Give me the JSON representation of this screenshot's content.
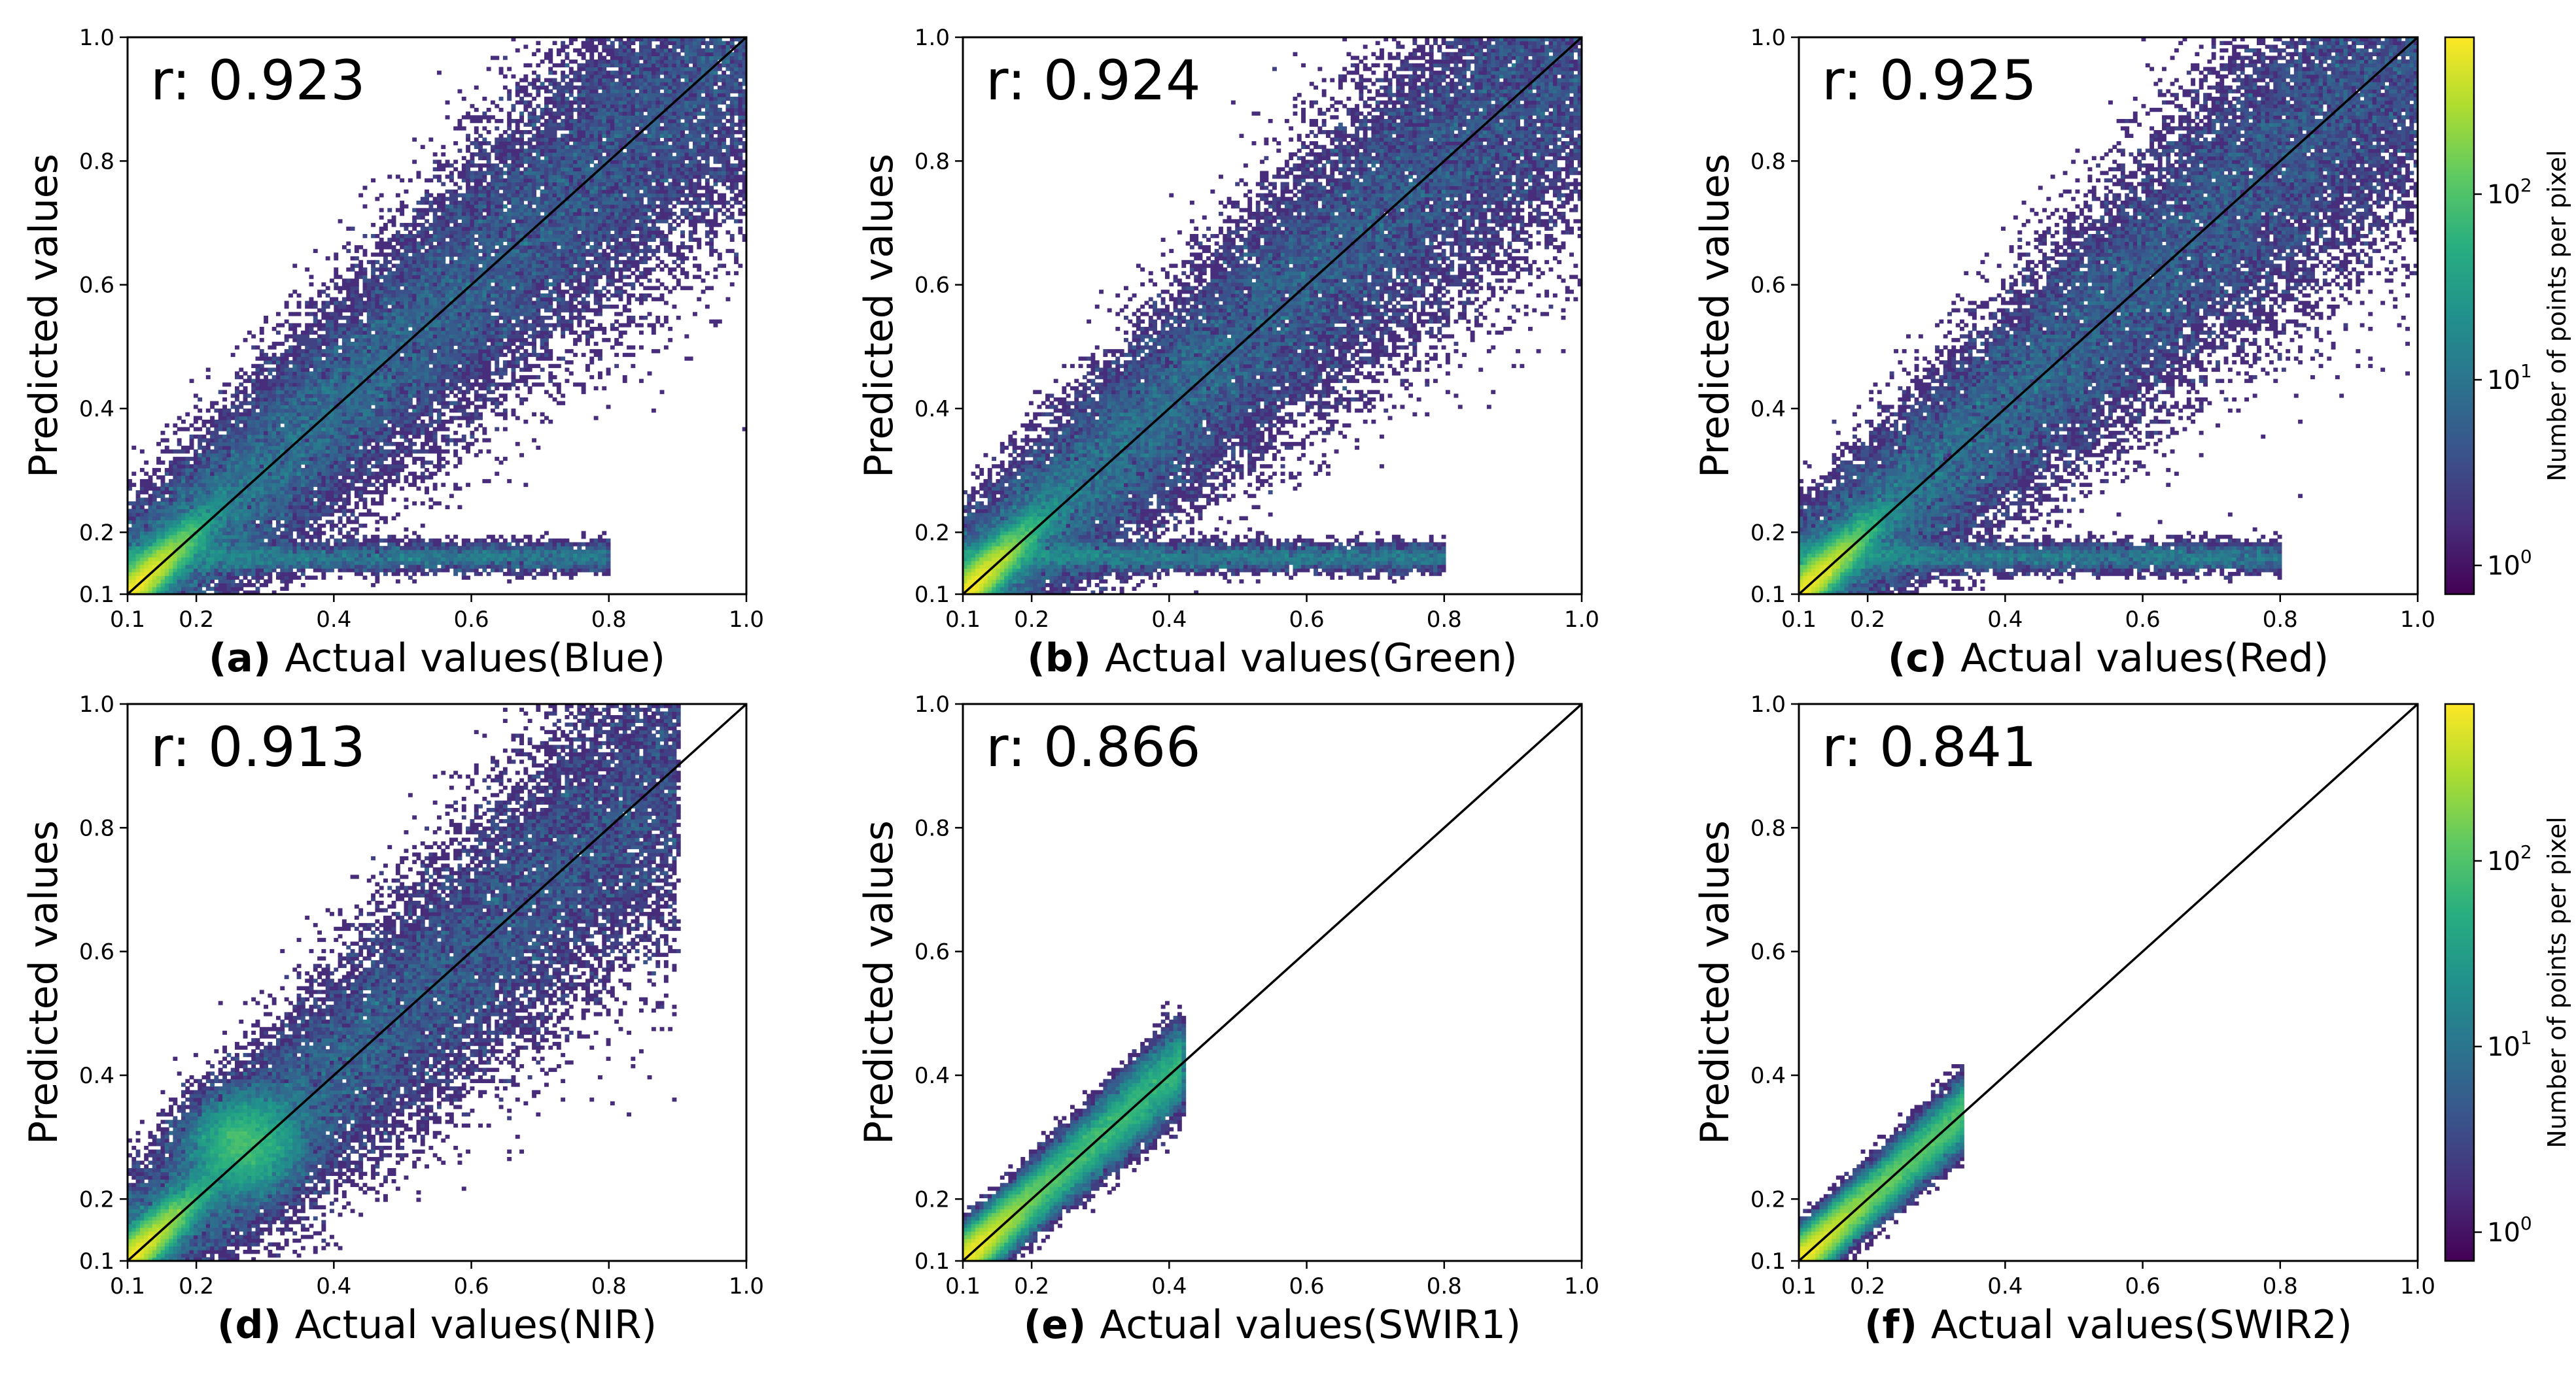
{
  "chart_data": [
    {
      "type": "heatmap",
      "panel": "(a)",
      "title": "",
      "xlabel": "Actual values(Blue)",
      "ylabel": "Predicted values",
      "r_label": "r: 0.923",
      "r": 0.923,
      "xlim": [
        0.1,
        1.0
      ],
      "ylim": [
        0.1,
        1.0
      ],
      "xticks": [
        "0.1",
        "0.2",
        "0.4",
        "0.6",
        "0.8",
        "1.0"
      ],
      "yticks": [
        "0.1",
        "0.2",
        "0.4",
        "0.6",
        "0.8",
        "1.0"
      ],
      "identity_line": true,
      "data_extent": 1.0,
      "spread": 0.1,
      "low_branch": true,
      "hotspot": [
        0.13,
        0.14
      ]
    },
    {
      "type": "heatmap",
      "panel": "(b)",
      "title": "",
      "xlabel": "Actual values(Green)",
      "ylabel": "Predicted values",
      "r_label": "r: 0.924",
      "r": 0.924,
      "xlim": [
        0.1,
        1.0
      ],
      "ylim": [
        0.1,
        1.0
      ],
      "xticks": [
        "0.1",
        "0.2",
        "0.4",
        "0.6",
        "0.8",
        "1.0"
      ],
      "yticks": [
        "0.1",
        "0.2",
        "0.4",
        "0.6",
        "0.8",
        "1.0"
      ],
      "identity_line": true,
      "data_extent": 1.0,
      "spread": 0.1,
      "low_branch": true,
      "hotspot": [
        0.13,
        0.14
      ]
    },
    {
      "type": "heatmap",
      "panel": "(c)",
      "title": "",
      "xlabel": "Actual values(Red)",
      "ylabel": "Predicted values",
      "r_label": "r: 0.925",
      "r": 0.925,
      "xlim": [
        0.1,
        1.0
      ],
      "ylim": [
        0.1,
        1.0
      ],
      "xticks": [
        "0.1",
        "0.2",
        "0.4",
        "0.6",
        "0.8",
        "1.0"
      ],
      "yticks": [
        "0.1",
        "0.2",
        "0.4",
        "0.6",
        "0.8",
        "1.0"
      ],
      "identity_line": true,
      "data_extent": 1.0,
      "spread": 0.1,
      "low_branch": true,
      "hotspot": [
        0.13,
        0.14
      ]
    },
    {
      "type": "heatmap",
      "panel": "(d)",
      "title": "",
      "xlabel": "Actual values(NIR)",
      "ylabel": "Predicted values",
      "r_label": "r: 0.913",
      "r": 0.913,
      "xlim": [
        0.1,
        1.0
      ],
      "ylim": [
        0.1,
        1.0
      ],
      "xticks": [
        "0.1",
        "0.2",
        "0.4",
        "0.6",
        "0.8",
        "1.0"
      ],
      "yticks": [
        "0.1",
        "0.2",
        "0.4",
        "0.6",
        "0.8",
        "1.0"
      ],
      "identity_line": true,
      "data_extent": 0.9,
      "spread": 0.1,
      "low_branch": false,
      "hotspot": [
        0.27,
        0.29
      ]
    },
    {
      "type": "heatmap",
      "panel": "(e)",
      "title": "",
      "xlabel": "Actual values(SWIR1)",
      "ylabel": "Predicted values",
      "r_label": "r: 0.866",
      "r": 0.866,
      "xlim": [
        0.1,
        1.0
      ],
      "ylim": [
        0.1,
        1.0
      ],
      "xticks": [
        "0.1",
        "0.2",
        "0.4",
        "0.6",
        "0.8",
        "1.0"
      ],
      "yticks": [
        "0.1",
        "0.2",
        "0.4",
        "0.6",
        "0.8",
        "1.0"
      ],
      "identity_line": true,
      "data_extent": 0.42,
      "spread": 0.035,
      "low_branch": false,
      "hotspot": [
        0.13,
        0.15
      ]
    },
    {
      "type": "heatmap",
      "panel": "(f)",
      "title": "",
      "xlabel": "Actual values(SWIR2)",
      "ylabel": "Predicted values",
      "r_label": "r: 0.841",
      "r": 0.841,
      "xlim": [
        0.1,
        1.0
      ],
      "ylim": [
        0.1,
        1.0
      ],
      "xticks": [
        "0.1",
        "0.2",
        "0.4",
        "0.6",
        "0.8",
        "1.0"
      ],
      "yticks": [
        "0.1",
        "0.2",
        "0.4",
        "0.6",
        "0.8",
        "1.0"
      ],
      "identity_line": true,
      "data_extent": 0.34,
      "spread": 0.03,
      "low_branch": false,
      "hotspot": [
        0.13,
        0.15
      ]
    }
  ],
  "colorbar": {
    "label": "Number of points per pixel",
    "scale": "log",
    "range": [
      0.7,
      700
    ],
    "ticks": [
      {
        "base": "10",
        "exp": "0",
        "value": 1
      },
      {
        "base": "10",
        "exp": "1",
        "value": 10
      },
      {
        "base": "10",
        "exp": "2",
        "value": 100
      }
    ],
    "colormap": "viridis",
    "stops": [
      "#440154",
      "#472d7b",
      "#3b528b",
      "#2c728e",
      "#21918c",
      "#28ae80",
      "#5ec962",
      "#addc30",
      "#fde725"
    ]
  }
}
